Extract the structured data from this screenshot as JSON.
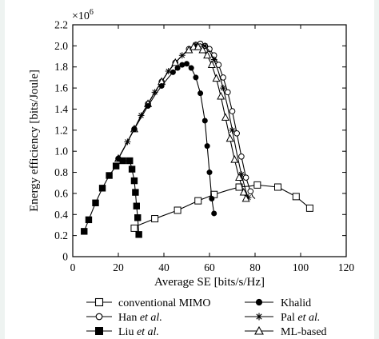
{
  "chart_data": {
    "type": "line",
    "xlabel": "Average SE [bits/s/Hz]",
    "ylabel": "Energy efficiency [bits/Joule]",
    "y_multiplier": "×10",
    "y_multiplier_exp": "6",
    "xlim": [
      0,
      120
    ],
    "ylim": [
      0,
      2.2
    ],
    "xticks": [
      0,
      20,
      40,
      60,
      80,
      100,
      120
    ],
    "xtick_labels": [
      "0",
      "20",
      "40",
      "60",
      "80",
      "100",
      "120"
    ],
    "yticks": [
      0,
      0.2,
      0.4,
      0.6,
      0.8,
      1.0,
      1.2,
      1.4,
      1.6,
      1.8,
      2.0,
      2.2
    ],
    "ytick_labels": [
      "0",
      "0.2",
      "0.4",
      "0.6",
      "0.8",
      "1.0",
      "1.2",
      "1.4",
      "1.6",
      "1.8",
      "2.0",
      "2.2"
    ],
    "grid": false,
    "legend_position": "bottom",
    "series": [
      {
        "name": "conventional MIMO",
        "marker": "square-open",
        "x": [
          27,
          29,
          36,
          46,
          55,
          62,
          68,
          73,
          78,
          81,
          90,
          98,
          104
        ],
        "y": [
          0.27,
          0.3,
          0.36,
          0.44,
          0.53,
          0.59,
          0.63,
          0.66,
          0.67,
          0.68,
          0.66,
          0.57,
          0.46
        ],
        "marker_indices": [
          0,
          2,
          3,
          4,
          5,
          7,
          9,
          10,
          11,
          12
        ]
      },
      {
        "name": "Han et al.",
        "marker": "circle-open",
        "x": [
          20,
          24,
          27,
          30,
          33,
          36,
          39,
          42,
          45,
          48,
          51,
          54,
          56,
          58,
          60,
          62,
          64,
          66,
          68,
          70,
          72,
          74,
          76,
          78,
          79,
          80
        ],
        "y": [
          0.93,
          1.09,
          1.21,
          1.34,
          1.45,
          1.56,
          1.66,
          1.76,
          1.84,
          1.91,
          1.97,
          2.01,
          2.02,
          2.0,
          1.97,
          1.91,
          1.82,
          1.7,
          1.56,
          1.38,
          1.17,
          0.95,
          0.75,
          0.62,
          0.57,
          0.55
        ],
        "marker_indices": [
          0,
          2,
          4,
          6,
          8,
          10,
          11,
          12,
          13,
          14,
          15,
          16,
          17,
          18,
          19,
          20,
          21,
          22,
          23
        ]
      },
      {
        "name": "Pal et al.",
        "marker": "star",
        "x": [
          20,
          24,
          27,
          30,
          33,
          36,
          39,
          42,
          45,
          48,
          51,
          54,
          56,
          58,
          60,
          62,
          64,
          66,
          68,
          70,
          72,
          74,
          76,
          77
        ],
        "y": [
          0.93,
          1.09,
          1.21,
          1.34,
          1.45,
          1.56,
          1.66,
          1.76,
          1.84,
          1.91,
          1.97,
          2.01,
          2.02,
          2.0,
          1.95,
          1.87,
          1.75,
          1.6,
          1.42,
          1.2,
          0.98,
          0.78,
          0.62,
          0.56
        ],
        "marker_indices": [
          1,
          3,
          5,
          7,
          9,
          11,
          13,
          15,
          17,
          19,
          21,
          23
        ]
      },
      {
        "name": "ML-based",
        "marker": "triangle-open",
        "x": [
          20,
          24,
          27,
          30,
          33,
          36,
          39,
          42,
          45,
          48,
          51,
          53,
          55,
          57,
          59,
          61,
          63,
          65,
          67,
          69,
          71,
          73,
          75,
          76
        ],
        "y": [
          0.93,
          1.09,
          1.21,
          1.34,
          1.45,
          1.56,
          1.66,
          1.76,
          1.84,
          1.91,
          1.96,
          1.99,
          1.99,
          1.96,
          1.91,
          1.82,
          1.69,
          1.52,
          1.32,
          1.12,
          0.92,
          0.75,
          0.61,
          0.55
        ],
        "marker_indices": [
          0,
          2,
          4,
          6,
          8,
          10,
          11,
          12,
          13,
          14,
          15,
          16,
          17,
          18,
          19,
          20,
          21,
          22,
          23
        ]
      },
      {
        "name": "Khalid",
        "marker": "circle-filled",
        "x": [
          20,
          24,
          27,
          30,
          33,
          36,
          39,
          42,
          44,
          46,
          48,
          50,
          52,
          54,
          56,
          58,
          59,
          60,
          61,
          62
        ],
        "y": [
          0.93,
          1.09,
          1.21,
          1.32,
          1.43,
          1.53,
          1.62,
          1.7,
          1.75,
          1.79,
          1.82,
          1.83,
          1.79,
          1.7,
          1.55,
          1.29,
          1.05,
          0.8,
          0.55,
          0.41
        ],
        "marker_indices": [
          0,
          2,
          4,
          6,
          8,
          9,
          10,
          11,
          12,
          13,
          14,
          15,
          16,
          17,
          18,
          19
        ]
      },
      {
        "name": "Liu et al.",
        "marker": "square-filled",
        "x": [
          5,
          7,
          10,
          13,
          16,
          19,
          22,
          25,
          26,
          27,
          27.5,
          28,
          28.5,
          29
        ],
        "y": [
          0.24,
          0.35,
          0.51,
          0.65,
          0.77,
          0.86,
          0.91,
          0.91,
          0.83,
          0.72,
          0.61,
          0.48,
          0.37,
          0.21
        ],
        "marker_indices": [
          0,
          1,
          2,
          3,
          4,
          5,
          6,
          7,
          8,
          9,
          10,
          11,
          12,
          13
        ]
      }
    ]
  },
  "legend": {
    "conventional_mimo": "conventional MIMO",
    "han_name": "Han ",
    "pal_name": "Pal ",
    "liu_name": "Liu ",
    "et_al": "et al.",
    "khalid": "Khalid",
    "ml_based": "ML-based"
  }
}
